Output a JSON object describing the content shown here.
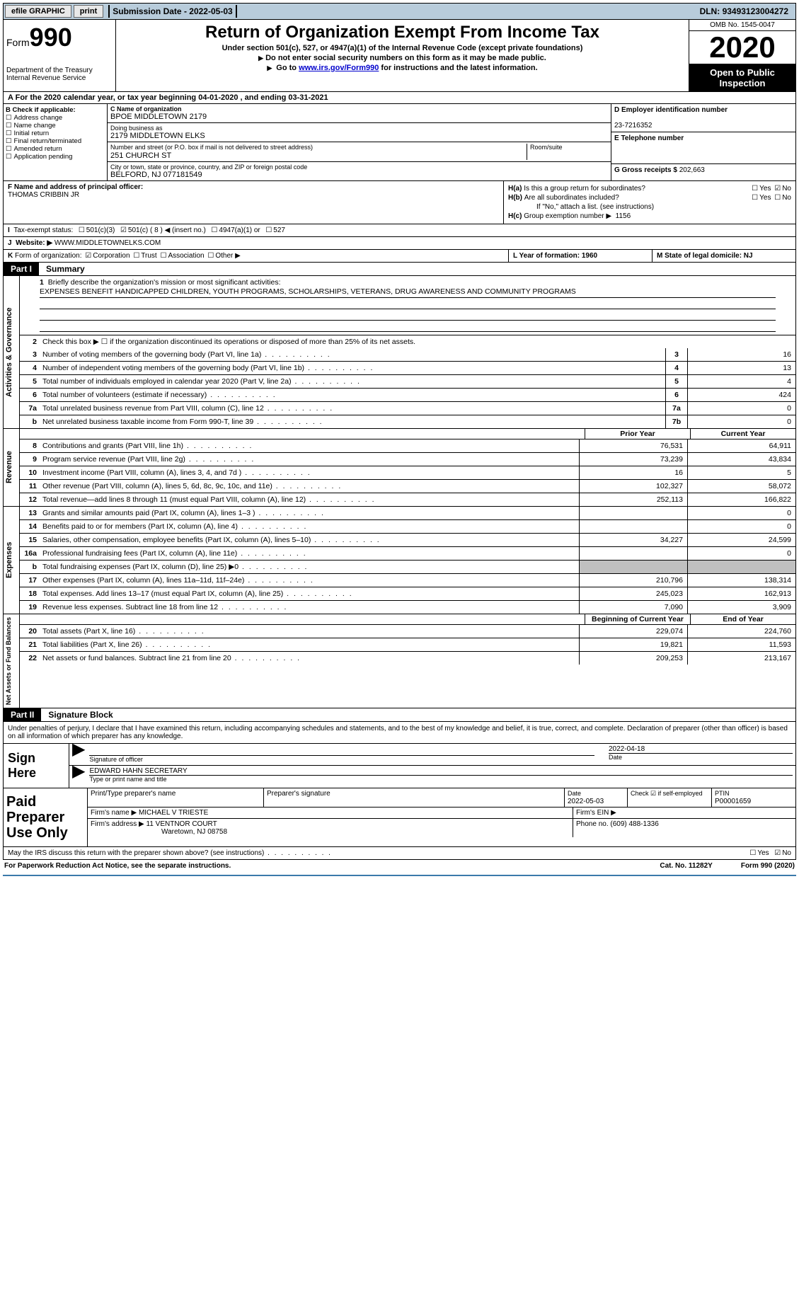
{
  "topbar": {
    "efile_btn": "efile GRAPHIC",
    "print_btn": "print",
    "sub_date_label": "Submission Date - ",
    "sub_date": "2022-05-03",
    "dln_label": "DLN: ",
    "dln": "93493123004272"
  },
  "header": {
    "form_word": "Form",
    "form_num": "990",
    "dept1": "Department of the Treasury",
    "dept2": "Internal Revenue Service",
    "title": "Return of Organization Exempt From Income Tax",
    "sub1": "Under section 501(c), 527, or 4947(a)(1) of the Internal Revenue Code (except private foundations)",
    "sub2": "Do not enter social security numbers on this form as it may be made public.",
    "sub3a": "Go to ",
    "sub3link": "www.irs.gov/Form990",
    "sub3b": " for instructions and the latest information.",
    "omb": "OMB No. 1545-0047",
    "year": "2020",
    "open1": "Open to Public",
    "open2": "Inspection"
  },
  "rowA": {
    "label": "A",
    "text": "For the 2020 calendar year, or tax year beginning 04-01-2020   , and ending 03-31-2021"
  },
  "boxB": {
    "header": "B Check if applicable:",
    "items": [
      "Address change",
      "Name change",
      "Initial return",
      "Final return/terminated",
      "Amended return",
      "Application pending"
    ]
  },
  "boxC": {
    "name_lbl": "C Name of organization",
    "name": "BPOE MIDDLETOWN 2179",
    "dba_lbl": "Doing business as",
    "dba": "2179 MIDDLETOWN ELKS",
    "street_lbl": "Number and street (or P.O. box if mail is not delivered to street address)",
    "street": "251 CHURCH ST",
    "room_lbl": "Room/suite",
    "city_lbl": "City or town, state or province, country, and ZIP or foreign postal code",
    "city": "BELFORD, NJ  077181549"
  },
  "boxD": {
    "ein_lbl": "D Employer identification number",
    "ein": "23-7216352",
    "tel_lbl": "E Telephone number",
    "grlbl": "G Gross receipts $ ",
    "gr": "202,663"
  },
  "boxF": {
    "lbl": "F Name and address of principal officer:",
    "name": "THOMAS CRIBBIN JR"
  },
  "boxH": {
    "a_lbl": "H(a)",
    "a_q": "Is this a group return for subordinates?",
    "b_lbl": "H(b)",
    "b_q": "Are all subordinates included?",
    "b_note": "If \"No,\" attach a list. (see instructions)",
    "c_lbl": "H(c)",
    "c_q": "Group exemption number ▶",
    "c_val": "1156",
    "yes": "Yes",
    "no": "No"
  },
  "rowI": {
    "lbl": "I",
    "text": "Tax-exempt status:",
    "opt1": "501(c)(3)",
    "opt2": "501(c) ( 8 ) ◀ (insert no.)",
    "opt3": "4947(a)(1) or",
    "opt4": "527"
  },
  "rowJ": {
    "lbl": "J",
    "text": "Website: ▶",
    "val": "WWW.MIDDLETOWNELKS.COM"
  },
  "rowK": {
    "lbl": "K",
    "text": "Form of organization:",
    "opts": [
      "Corporation",
      "Trust",
      "Association",
      "Other ▶"
    ]
  },
  "rowL": {
    "text": "L Year of formation: 1960"
  },
  "rowM": {
    "text": "M State of legal domicile: NJ"
  },
  "part1": {
    "tab": "Part I",
    "title": "Summary"
  },
  "mission": {
    "num": "1",
    "lbl": "Briefly describe the organization's mission or most significant activities:",
    "text": "EXPENSES BENEFIT HANDICAPPED CHILDREN, YOUTH PROGRAMS, SCHOLARSHIPS, VETERANS, DRUG AWARENESS AND COMMUNITY PROGRAMS"
  },
  "line2": {
    "num": "2",
    "text": "Check this box ▶ ☐  if the organization discontinued its operations or disposed of more than 25% of its net assets."
  },
  "gov_rows": [
    {
      "n": "3",
      "d": "Number of voting members of the governing body (Part VI, line 1a)",
      "k": "3",
      "v": "16"
    },
    {
      "n": "4",
      "d": "Number of independent voting members of the governing body (Part VI, line 1b)",
      "k": "4",
      "v": "13"
    },
    {
      "n": "5",
      "d": "Total number of individuals employed in calendar year 2020 (Part V, line 2a)",
      "k": "5",
      "v": "4"
    },
    {
      "n": "6",
      "d": "Total number of volunteers (estimate if necessary)",
      "k": "6",
      "v": "424"
    },
    {
      "n": "7a",
      "d": "Total unrelated business revenue from Part VIII, column (C), line 12",
      "k": "7a",
      "v": "0"
    },
    {
      "n": "b",
      "d": "Net unrelated business taxable income from Form 990-T, line 39",
      "k": "7b",
      "v": "0"
    }
  ],
  "col_hdr": {
    "prior": "Prior Year",
    "current": "Current Year"
  },
  "rev_rows": [
    {
      "n": "8",
      "d": "Contributions and grants (Part VIII, line 1h)",
      "p": "76,531",
      "c": "64,911"
    },
    {
      "n": "9",
      "d": "Program service revenue (Part VIII, line 2g)",
      "p": "73,239",
      "c": "43,834"
    },
    {
      "n": "10",
      "d": "Investment income (Part VIII, column (A), lines 3, 4, and 7d )",
      "p": "16",
      "c": "5"
    },
    {
      "n": "11",
      "d": "Other revenue (Part VIII, column (A), lines 5, 6d, 8c, 9c, 10c, and 11e)",
      "p": "102,327",
      "c": "58,072"
    },
    {
      "n": "12",
      "d": "Total revenue—add lines 8 through 11 (must equal Part VIII, column (A), line 12)",
      "p": "252,113",
      "c": "166,822"
    }
  ],
  "exp_rows": [
    {
      "n": "13",
      "d": "Grants and similar amounts paid (Part IX, column (A), lines 1–3 )",
      "p": "",
      "c": "0"
    },
    {
      "n": "14",
      "d": "Benefits paid to or for members (Part IX, column (A), line 4)",
      "p": "",
      "c": "0"
    },
    {
      "n": "15",
      "d": "Salaries, other compensation, employee benefits (Part IX, column (A), lines 5–10)",
      "p": "34,227",
      "c": "24,599"
    },
    {
      "n": "16a",
      "d": "Professional fundraising fees (Part IX, column (A), line 11e)",
      "p": "",
      "c": "0"
    },
    {
      "n": "b",
      "d": "Total fundraising expenses (Part IX, column (D), line 25) ▶0",
      "p": "SHADE",
      "c": "SHADE"
    },
    {
      "n": "17",
      "d": "Other expenses (Part IX, column (A), lines 11a–11d, 11f–24e)",
      "p": "210,796",
      "c": "138,314"
    },
    {
      "n": "18",
      "d": "Total expenses. Add lines 13–17 (must equal Part IX, column (A), line 25)",
      "p": "245,023",
      "c": "162,913"
    },
    {
      "n": "19",
      "d": "Revenue less expenses. Subtract line 18 from line 12",
      "p": "7,090",
      "c": "3,909"
    }
  ],
  "bal_hdr": {
    "begin": "Beginning of Current Year",
    "end": "End of Year"
  },
  "bal_rows": [
    {
      "n": "20",
      "d": "Total assets (Part X, line 16)",
      "p": "229,074",
      "c": "224,760"
    },
    {
      "n": "21",
      "d": "Total liabilities (Part X, line 26)",
      "p": "19,821",
      "c": "11,593"
    },
    {
      "n": "22",
      "d": "Net assets or fund balances. Subtract line 21 from line 20",
      "p": "209,253",
      "c": "213,167"
    }
  ],
  "vtabs": {
    "gov": "Activities & Governance",
    "rev": "Revenue",
    "exp": "Expenses",
    "bal": "Net Assets or Fund Balances"
  },
  "part2": {
    "tab": "Part II",
    "title": "Signature Block"
  },
  "sig_decl": "Under penalties of perjury, I declare that I have examined this return, including accompanying schedules and statements, and to the best of my knowledge and belief, it is true, correct, and complete. Declaration of preparer (other than officer) is based on all information of which preparer has any knowledge.",
  "sign": {
    "left": "Sign Here",
    "sig_lbl": "Signature of officer",
    "date_lbl": "Date",
    "date": "2022-04-18",
    "name": "EDWARD HAHN  SECRETARY",
    "name_lbl": "Type or print name and title"
  },
  "prep": {
    "left": "Paid Preparer Use Only",
    "r1": {
      "c1": "Print/Type preparer's name",
      "c2": "Preparer's signature",
      "c3l": "Date",
      "c3": "2022-05-03",
      "c4": "Check ☑ if self-employed",
      "c5l": "PTIN",
      "c5": "P00001659"
    },
    "r2": {
      "c1": "Firm's name    ▶ MICHAEL V TRIESTE",
      "c2": "Firm's EIN ▶"
    },
    "r3": {
      "c1": "Firm's address ▶ 11 VENTNOR COURT",
      "c1b": "Waretown, NJ  08758",
      "c2": "Phone no. (609) 488-1336"
    }
  },
  "discuss": {
    "text": "May the IRS discuss this return with the preparer shown above? (see instructions)",
    "yes": "Yes",
    "no": "No"
  },
  "footer": {
    "left": "For Paperwork Reduction Act Notice, see the separate instructions.",
    "mid": "Cat. No. 11282Y",
    "right": "Form 990 (2020)"
  },
  "colors": {
    "topbar_bg": "#b8ccdb",
    "link": "#0000cc",
    "shade": "#c0c0c0",
    "blue_rule": "#3b7aaa"
  }
}
